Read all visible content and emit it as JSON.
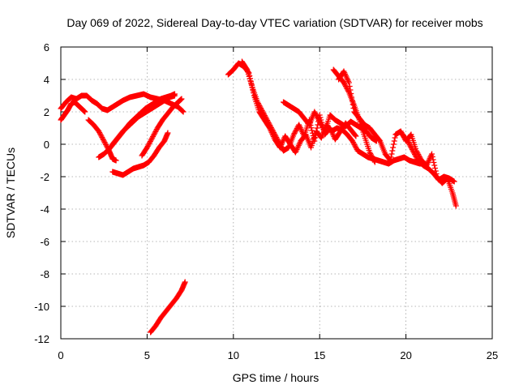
{
  "chart_data": {
    "type": "scatter",
    "title": "Day 069 of 2022, Sidereal Day-to-day VTEC variation (SDTVAR) for receiver mobs",
    "xlabel": "GPS time / hours",
    "ylabel": "SDTVAR / TECUs",
    "xlim": [
      0,
      25
    ],
    "ylim": [
      -12,
      6
    ],
    "xticks": [
      "0",
      "5",
      "10",
      "15",
      "20",
      "25"
    ],
    "yticks": [
      "6",
      "4",
      "2",
      "0",
      "-2",
      "-4",
      "-6",
      "-8",
      "-10",
      "-12"
    ],
    "grid": true,
    "marker": "plus",
    "color": "#ff0000",
    "series": [
      {
        "name": "track-1",
        "x": [
          0.0,
          0.3,
          0.6,
          0.9,
          1.2,
          1.5,
          1.8,
          2.1,
          2.4,
          2.7,
          3.0,
          3.3,
          3.6,
          4.0,
          4.4,
          4.8,
          5.2,
          5.6,
          6.0,
          6.4,
          6.8,
          7.1
        ],
        "y": [
          2.2,
          2.6,
          2.9,
          2.8,
          3.0,
          3.0,
          2.7,
          2.5,
          2.2,
          2.1,
          2.3,
          2.5,
          2.7,
          2.9,
          3.0,
          3.1,
          2.9,
          2.8,
          2.7,
          2.5,
          2.3,
          2.0
        ]
      },
      {
        "name": "track-2",
        "x": [
          0.0,
          0.2,
          0.4,
          0.6,
          0.8,
          1.0,
          1.2,
          1.4
        ],
        "y": [
          1.5,
          1.8,
          2.1,
          2.5,
          2.6,
          2.4,
          2.2,
          2.0
        ]
      },
      {
        "name": "track-3",
        "x": [
          1.6,
          1.9,
          2.2,
          2.5,
          2.8,
          3.0,
          3.2
        ],
        "y": [
          1.5,
          1.2,
          0.8,
          0.2,
          -0.4,
          -0.9,
          -1.0
        ]
      },
      {
        "name": "track-4",
        "x": [
          2.2,
          2.5,
          2.8,
          3.1,
          3.4,
          3.7,
          4.0,
          4.3,
          4.6,
          4.9,
          5.2,
          5.5,
          5.8,
          6.1,
          6.4,
          6.6
        ],
        "y": [
          -0.8,
          -0.6,
          -0.3,
          0.1,
          0.5,
          0.9,
          1.3,
          1.6,
          1.9,
          2.2,
          2.4,
          2.6,
          2.8,
          2.9,
          3.0,
          3.1
        ]
      },
      {
        "name": "track-5",
        "x": [
          3.0,
          3.3,
          3.6,
          3.9,
          4.2,
          4.5,
          4.8,
          5.1,
          5.4,
          5.7,
          6.0,
          6.3,
          6.6
        ],
        "y": [
          0.0,
          0.4,
          0.8,
          1.1,
          1.4,
          1.7,
          1.9,
          2.1,
          2.3,
          2.5,
          2.7,
          2.9,
          3.0
        ]
      },
      {
        "name": "track-6",
        "x": [
          4.7,
          5.0,
          5.3,
          5.6,
          5.9,
          6.2,
          6.5,
          6.8,
          7.0
        ],
        "y": [
          -0.7,
          -0.2,
          0.4,
          1.0,
          1.5,
          1.9,
          2.3,
          2.6,
          2.8
        ]
      },
      {
        "name": "track-7",
        "x": [
          3.0,
          3.3,
          3.6,
          3.9,
          4.2,
          4.5,
          4.8,
          5.1,
          5.4,
          5.7,
          6.0,
          6.2
        ],
        "y": [
          -1.7,
          -1.8,
          -1.9,
          -1.7,
          -1.5,
          -1.4,
          -1.3,
          -1.1,
          -0.7,
          -0.2,
          0.2,
          0.7
        ]
      },
      {
        "name": "track-8",
        "x": [
          5.2,
          5.5,
          5.8,
          6.1,
          6.4,
          6.7,
          7.0,
          7.2
        ],
        "y": [
          -11.6,
          -11.2,
          -10.7,
          -10.3,
          -9.9,
          -9.5,
          -9.0,
          -8.5
        ]
      },
      {
        "name": "track-9",
        "x": [
          9.7,
          10.0,
          10.3,
          10.6,
          10.9,
          11.2,
          11.5,
          11.8,
          12.1,
          12.4,
          12.7,
          13.0,
          13.3,
          13.6,
          13.9,
          14.2,
          14.5,
          14.8,
          15.1,
          15.4,
          15.7,
          16.0,
          16.3,
          16.6,
          16.9,
          17.2,
          17.5,
          17.8,
          18.1,
          18.4,
          18.7,
          19.0,
          19.3,
          19.6,
          19.9,
          20.2,
          20.5,
          20.8,
          21.1
        ],
        "y": [
          4.3,
          4.6,
          5.0,
          4.8,
          4.4,
          3.0,
          2.0,
          1.5,
          1.0,
          0.3,
          -0.2,
          0.5,
          0.0,
          -0.5,
          0.2,
          0.6,
          -0.2,
          0.8,
          0.4,
          1.2,
          0.8,
          1.0,
          0.9,
          0.6,
          0.2,
          -0.4,
          -0.6,
          -0.8,
          -0.9,
          -1.0,
          -1.1,
          -1.2,
          -1.0,
          -0.9,
          -0.8,
          -1.0,
          -1.1,
          -1.2,
          -1.2
        ]
      },
      {
        "name": "track-10",
        "x": [
          10.5,
          10.8,
          11.1,
          11.4,
          11.7,
          12.0,
          12.3,
          12.6,
          12.9,
          13.2,
          13.5,
          13.8,
          14.1,
          14.4,
          14.7,
          15.0,
          15.3,
          15.6,
          15.9,
          16.2,
          16.5,
          16.8,
          17.1
        ],
        "y": [
          5.1,
          4.6,
          3.5,
          2.6,
          2.0,
          1.4,
          0.8,
          0.2,
          -0.4,
          -0.2,
          0.6,
          1.2,
          0.5,
          1.5,
          0.2,
          1.8,
          0.6,
          1.0,
          0.3,
          0.8,
          1.3,
          0.9,
          0.5
        ]
      },
      {
        "name": "track-11",
        "x": [
          12.9,
          13.2,
          13.5,
          13.8,
          14.1,
          14.4,
          14.7,
          15.0,
          15.3,
          15.6,
          15.9,
          16.2,
          16.5,
          16.8,
          17.1,
          17.4,
          17.7,
          18.0,
          18.3
        ],
        "y": [
          2.6,
          2.4,
          2.2,
          2.0,
          1.6,
          1.2,
          2.0,
          1.4,
          0.8,
          1.8,
          1.5,
          1.3,
          1.1,
          1.4,
          1.2,
          1.0,
          0.8,
          0.4,
          0.2
        ]
      },
      {
        "name": "track-12",
        "x": [
          15.8,
          16.1,
          16.4,
          16.7,
          17.0,
          17.3,
          17.6,
          17.9,
          18.2
        ],
        "y": [
          4.6,
          4.2,
          3.8,
          3.2,
          2.4,
          1.5,
          0.5,
          -0.5,
          -1.1
        ]
      },
      {
        "name": "track-13",
        "x": [
          16.1,
          16.4,
          16.7,
          17.0,
          17.3,
          17.6,
          17.9,
          18.2,
          18.5,
          18.8,
          19.1,
          19.4,
          19.7,
          20.0,
          20.3,
          20.6,
          20.9,
          21.2,
          21.5,
          21.8,
          22.1,
          22.4,
          22.7,
          22.9
        ],
        "y": [
          4.0,
          4.5,
          3.8,
          2.0,
          1.6,
          1.2,
          1.0,
          0.6,
          0.2,
          -0.6,
          -1.0,
          0.6,
          0.8,
          0.2,
          0.6,
          -0.4,
          -1.0,
          -1.3,
          -0.6,
          -2.0,
          -2.4,
          -2.1,
          -3.0,
          -3.8
        ]
      },
      {
        "name": "track-14",
        "x": [
          19.8,
          20.1,
          20.4,
          20.7,
          21.0,
          21.3,
          21.6,
          21.9,
          22.2,
          22.5,
          22.8
        ],
        "y": [
          0.6,
          0.2,
          -0.4,
          -1.0,
          -1.3,
          -1.5,
          -1.8,
          -2.2,
          -2.0,
          -2.1,
          -2.3
        ]
      }
    ]
  }
}
